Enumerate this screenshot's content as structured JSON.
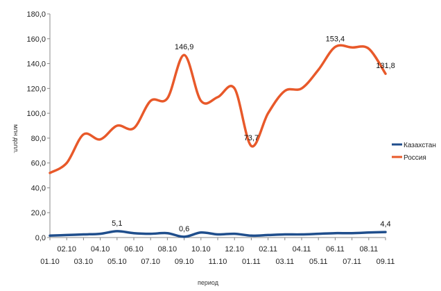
{
  "chart_data": {
    "type": "line",
    "xlabel": "период",
    "ylabel": "млн долл.",
    "ylim": [
      0,
      180
    ],
    "yticks": [
      "0,0",
      "20,0",
      "40,0",
      "60,0",
      "80,0",
      "100,0",
      "120,0",
      "140,0",
      "160,0",
      "180,0"
    ],
    "grid": false,
    "legend_position": "right",
    "categories": [
      "01.10",
      "02.10",
      "03.10",
      "04.10",
      "05.10",
      "06.10",
      "07.10",
      "08.10",
      "09.10",
      "10.10",
      "11.10",
      "12.10",
      "01.11",
      "02.11",
      "03.11",
      "04.11",
      "05.11",
      "06.11",
      "07.11",
      "08.11",
      "09.11"
    ],
    "series": [
      {
        "name": "Казахстан",
        "color": "#1f4e8c",
        "values": [
          1.5,
          2.0,
          2.5,
          3.0,
          5.1,
          3.5,
          3.0,
          3.5,
          0.6,
          4.0,
          2.5,
          3.0,
          1.5,
          2.0,
          2.5,
          2.5,
          3.0,
          3.5,
          3.5,
          4.0,
          4.4
        ]
      },
      {
        "name": "Россия",
        "color": "#e8592a",
        "values": [
          52,
          60,
          83,
          79,
          90,
          88,
          110,
          112,
          146.9,
          110,
          113,
          120,
          73.7,
          100,
          118,
          120,
          135,
          153.4,
          153,
          152,
          131.8
        ]
      }
    ],
    "data_labels": [
      {
        "series": 0,
        "index": 4,
        "text": "5,1"
      },
      {
        "series": 0,
        "index": 8,
        "text": "0,6"
      },
      {
        "series": 0,
        "index": 20,
        "text": "4,4"
      },
      {
        "series": 1,
        "index": 8,
        "text": "146,9"
      },
      {
        "series": 1,
        "index": 12,
        "text": "73,7"
      },
      {
        "series": 1,
        "index": 17,
        "text": "153,4"
      },
      {
        "series": 1,
        "index": 20,
        "text": "131,8"
      }
    ]
  }
}
